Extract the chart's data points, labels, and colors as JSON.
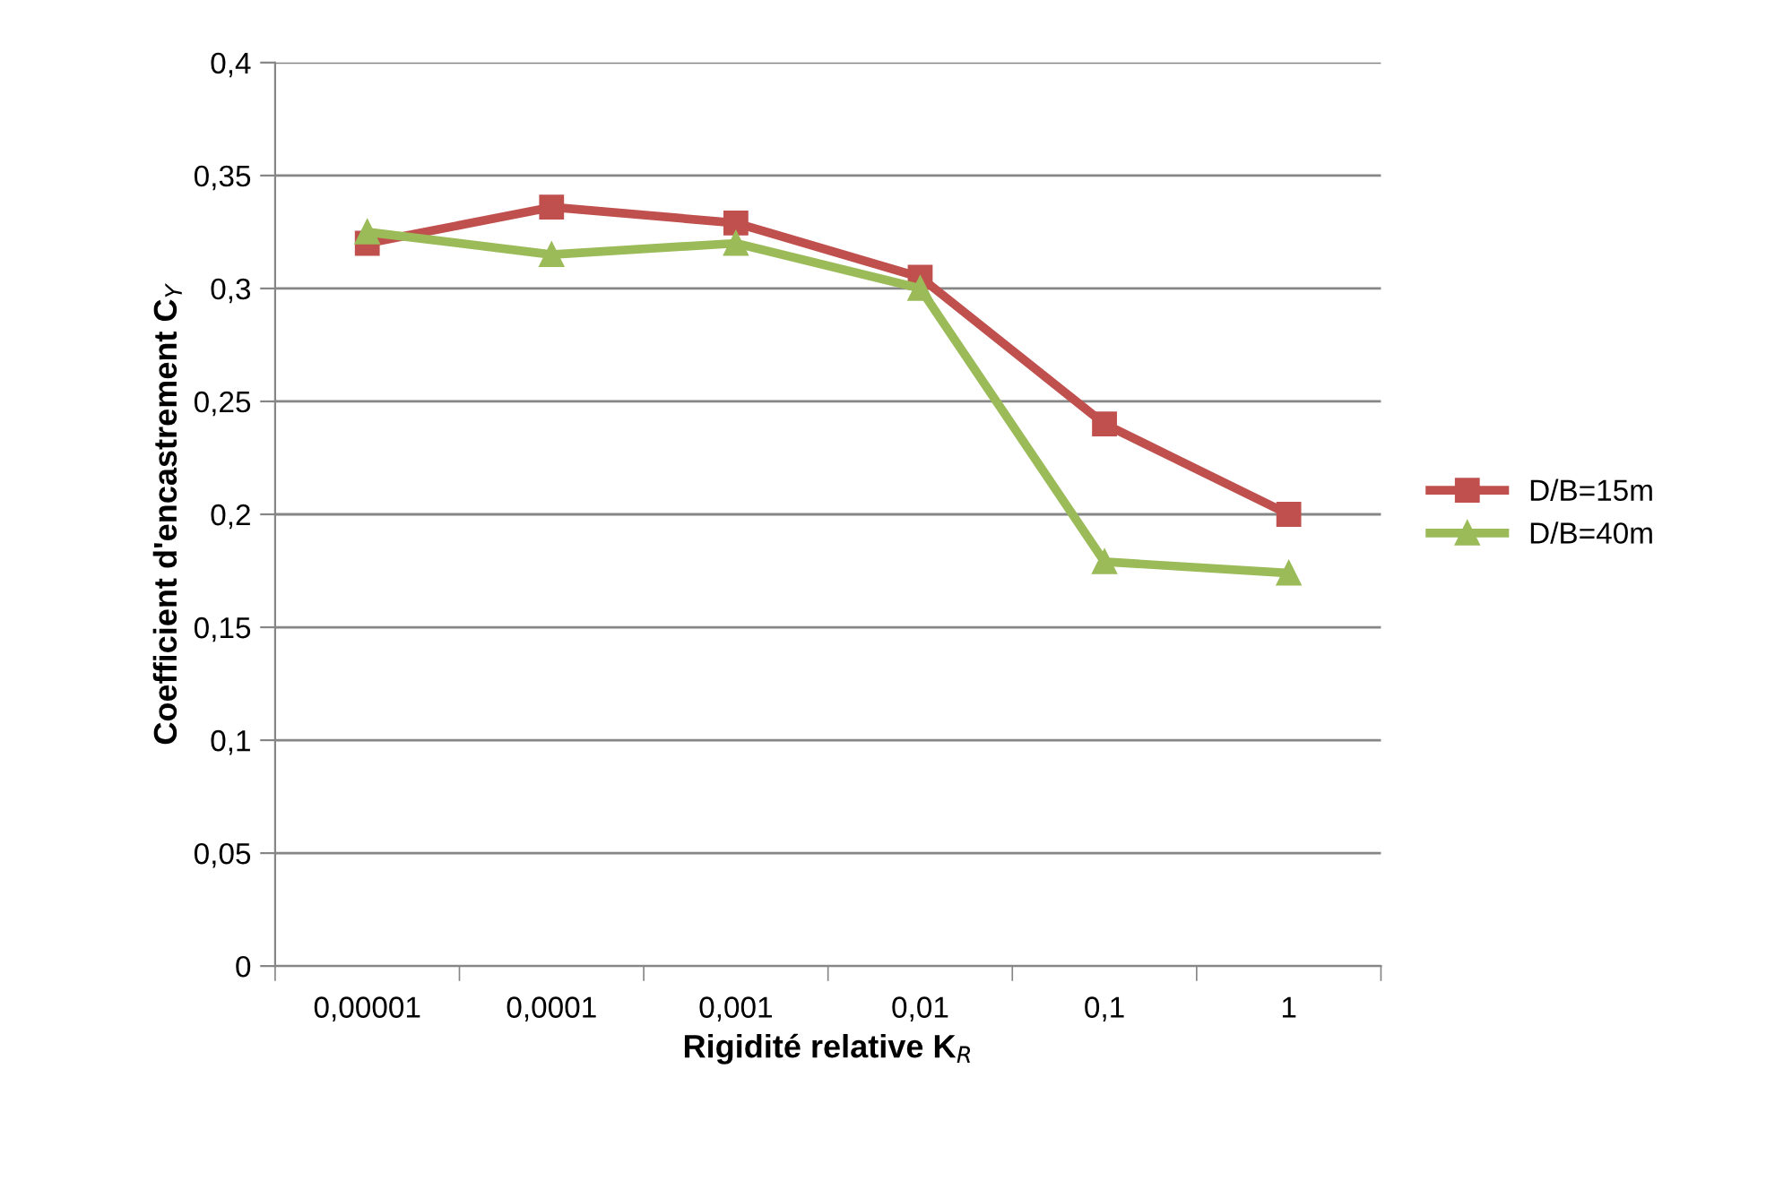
{
  "chart_data": {
    "type": "line",
    "xlabel": "Rigidité relative K$_{R}$",
    "ylabel": "Coefficient d'encastrement C$_{Y}$",
    "categories": [
      "0,00001",
      "0,0001",
      "0,001",
      "0,01",
      "0,1",
      "1"
    ],
    "series": [
      {
        "name": "D/B=15m",
        "color": "#c0504d",
        "marker": "square",
        "values": [
          0.32,
          0.336,
          0.329,
          0.305,
          0.24,
          0.2
        ]
      },
      {
        "name": "D/B=40m",
        "color": "#9bbb59",
        "marker": "triangle",
        "values": [
          0.325,
          0.315,
          0.32,
          0.3,
          0.179,
          0.174
        ]
      }
    ],
    "ylim": [
      0,
      0.4
    ],
    "yticks": [
      0,
      {
        "value": 0.05,
        "label": "0,05"
      },
      {
        "value": 0.1,
        "label": "0,1"
      },
      {
        "value": 0.15,
        "label": "0,15"
      },
      {
        "value": 0.2,
        "label": "0,2"
      },
      {
        "value": 0.25,
        "label": "0,25"
      },
      {
        "value": 0.3,
        "label": "0,3"
      },
      {
        "value": 0.35,
        "label": "0,35"
      },
      {
        "value": 0.4,
        "label": "0,4"
      }
    ],
    "grid": "y",
    "legend": "right",
    "line_style": "solid"
  }
}
